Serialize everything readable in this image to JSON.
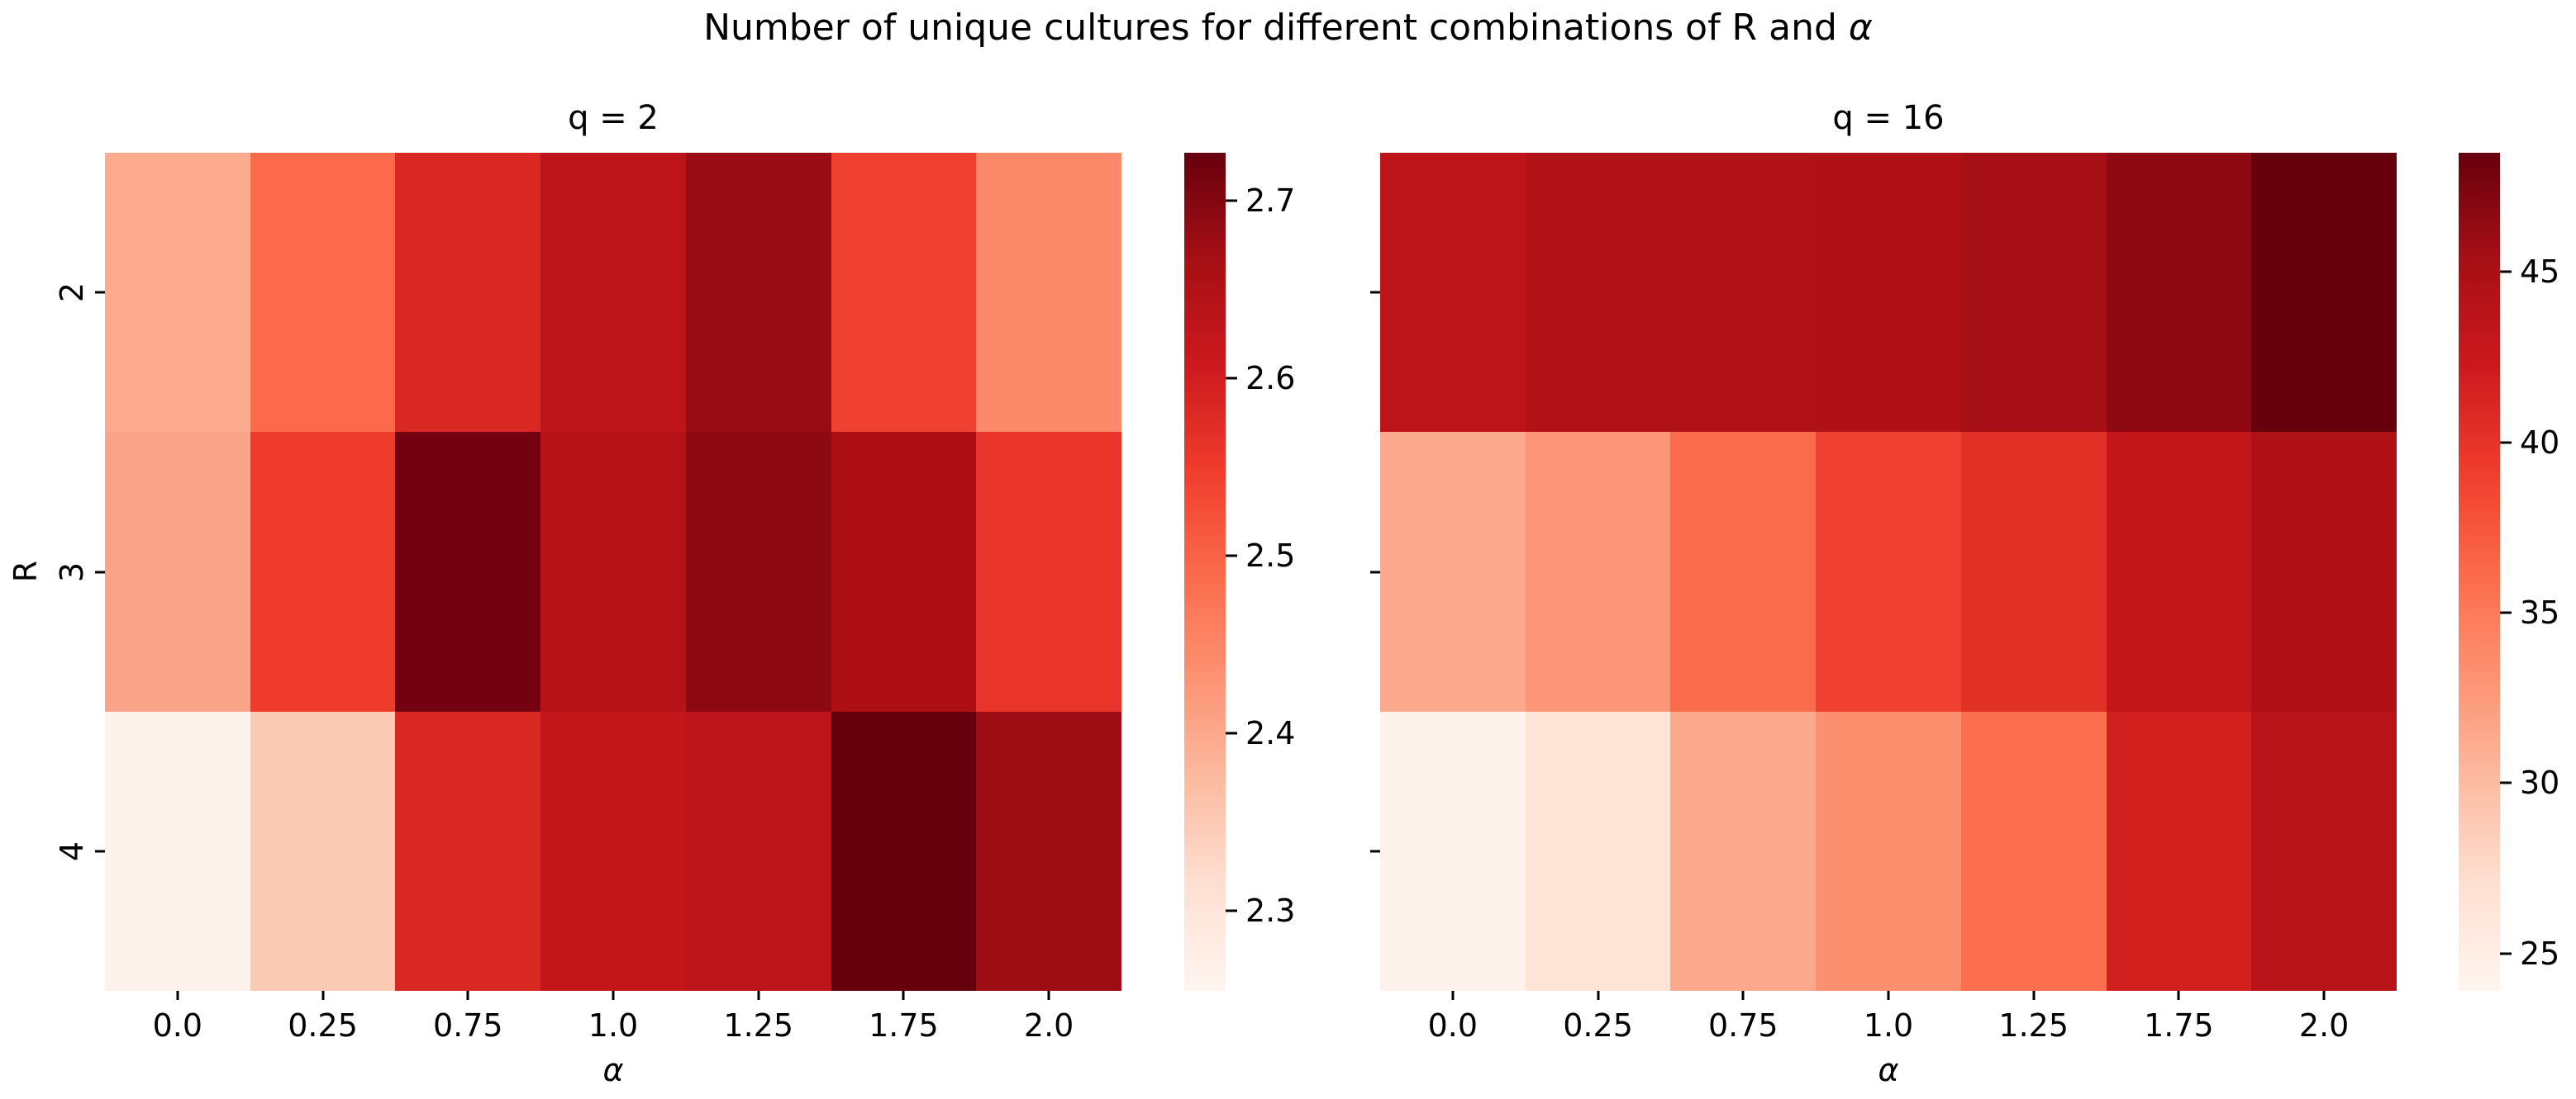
{
  "figure": {
    "title_prefix": "Number of unique cultures for different combinations of R and ",
    "title_alpha": "α",
    "background": "#ffffff",
    "text_color": "#000000"
  },
  "colormap": {
    "name": "Reds",
    "stops": [
      "#fff5f0",
      "#fee0d2",
      "#fcbba1",
      "#fc9272",
      "#fb6a4a",
      "#ef3b2c",
      "#cb181d",
      "#a50f15",
      "#67000d"
    ]
  },
  "chart_data": [
    {
      "type": "heatmap",
      "title": "q = 2",
      "xlabel": "α",
      "ylabel": "R",
      "x_ticklabels": [
        "0.0",
        "0.25",
        "0.75",
        "1.0",
        "1.25",
        "1.75",
        "2.0"
      ],
      "y_ticklabels": [
        "2",
        "3",
        "4"
      ],
      "y_ticklabels_visible": true,
      "colorbar": {
        "vmin": 2.255,
        "vmax": 2.727,
        "ticks": [
          2.7,
          2.6,
          2.5,
          2.4,
          2.3
        ],
        "tick_labels": [
          "2.7",
          "2.6",
          "2.5",
          "2.4",
          "2.3"
        ]
      },
      "values_estimated": [
        [
          2.4,
          2.5,
          2.59,
          2.63,
          2.68,
          2.55,
          2.46
        ],
        [
          2.41,
          2.55,
          2.72,
          2.64,
          2.69,
          2.66,
          2.57
        ],
        [
          2.27,
          2.34,
          2.59,
          2.63,
          2.64,
          2.73,
          2.68
        ]
      ],
      "cell_colors": [
        [
          "#fcab8e",
          "#fb6a4a",
          "#d92723",
          "#bc141a",
          "#990c13",
          "#f0402f",
          "#fc8a6a"
        ],
        [
          "#f9a488",
          "#ef3b2c",
          "#730111",
          "#b61319",
          "#8c0912",
          "#ad0f15",
          "#e93429"
        ],
        [
          "#fdf2ec",
          "#fccbb6",
          "#d92723",
          "#c2161b",
          "#bc141a",
          "#67000d",
          "#9e0d14"
        ]
      ]
    },
    {
      "type": "heatmap",
      "title": "q = 16",
      "xlabel": "α",
      "ylabel": "",
      "x_ticklabels": [
        "0.0",
        "0.25",
        "0.75",
        "1.0",
        "1.25",
        "1.75",
        "2.0"
      ],
      "y_ticklabels": [
        "",
        "",
        ""
      ],
      "y_ticklabels_visible": false,
      "colorbar": {
        "vmin": 23.9,
        "vmax": 48.5,
        "ticks": [
          45,
          40,
          35,
          30,
          25
        ],
        "tick_labels": [
          "45",
          "40",
          "35",
          "30",
          "25"
        ]
      },
      "values_estimated": [
        [
          43.6,
          44.3,
          44.3,
          44.5,
          45.4,
          46.5,
          48.5
        ],
        [
          31.2,
          32.3,
          35.6,
          38.5,
          39.8,
          42.6,
          44.4
        ],
        [
          24.2,
          26.3,
          31.2,
          33.3,
          35.6,
          41.2,
          43.8
        ]
      ],
      "cell_colors": [
        [
          "#bc1419",
          "#b11217",
          "#b11217",
          "#b01116",
          "#a50f15",
          "#8f0912",
          "#67000d"
        ],
        [
          "#faa98d",
          "#fb9778",
          "#fb6c4c",
          "#f0402f",
          "#e23027",
          "#c2161b",
          "#b01116"
        ],
        [
          "#fdf2ec",
          "#fee3d7",
          "#fba98c",
          "#fb8f6e",
          "#fb6e4e",
          "#d2201f",
          "#b81319"
        ]
      ]
    }
  ]
}
